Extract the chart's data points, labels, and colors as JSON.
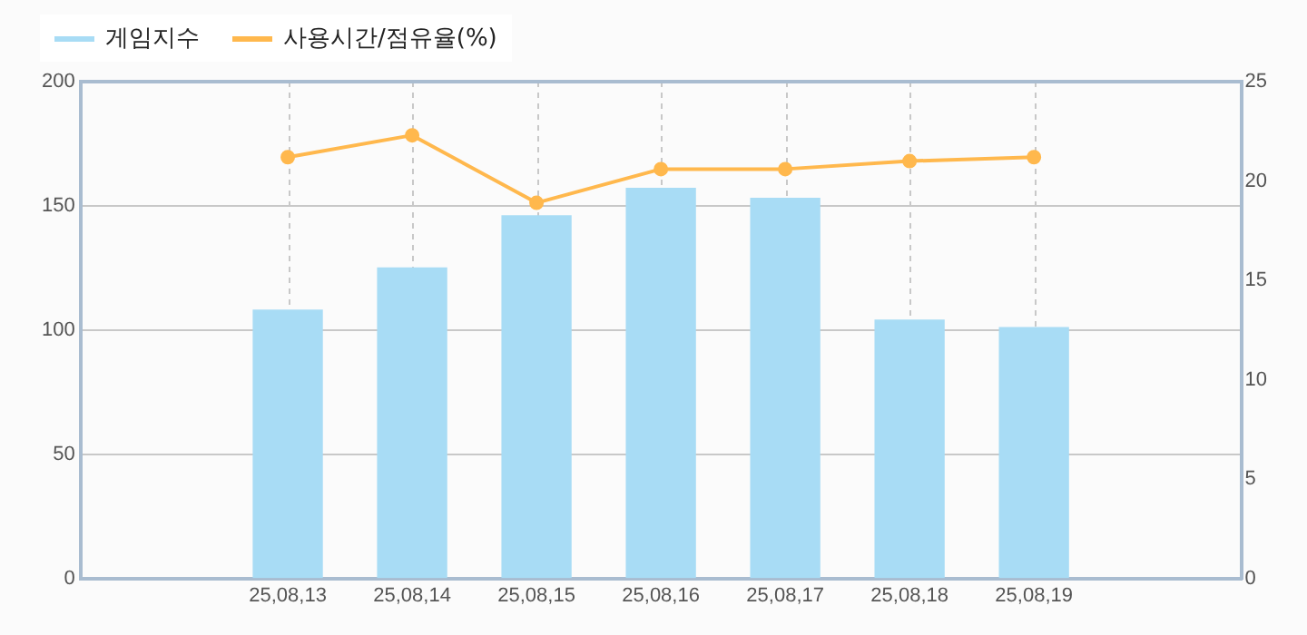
{
  "chart_data": {
    "type": "bar",
    "categories": [
      "25,08,13",
      "25,08,14",
      "25,08,15",
      "25,08,16",
      "25,08,17",
      "25,08,18",
      "25,08,19"
    ],
    "series": [
      {
        "name": "게임지수",
        "color": "#a8dcf5",
        "values": [
          108,
          125,
          146,
          157,
          153,
          104,
          101
        ]
      },
      {
        "name": "사용시간/점유율(%)",
        "type": "line",
        "axis": "y2",
        "color": "#ffb84d",
        "values": [
          21.2,
          22.3,
          18.9,
          20.6,
          20.6,
          21.0,
          21.2
        ]
      }
    ],
    "ylim": [
      0,
      200
    ],
    "yticks": [
      0,
      50,
      100,
      150,
      200
    ],
    "y2lim": [
      0,
      25
    ],
    "y2ticks": [
      0,
      5,
      10,
      15,
      20,
      25
    ],
    "grid": true,
    "legend": "top left",
    "marker": "circle"
  }
}
